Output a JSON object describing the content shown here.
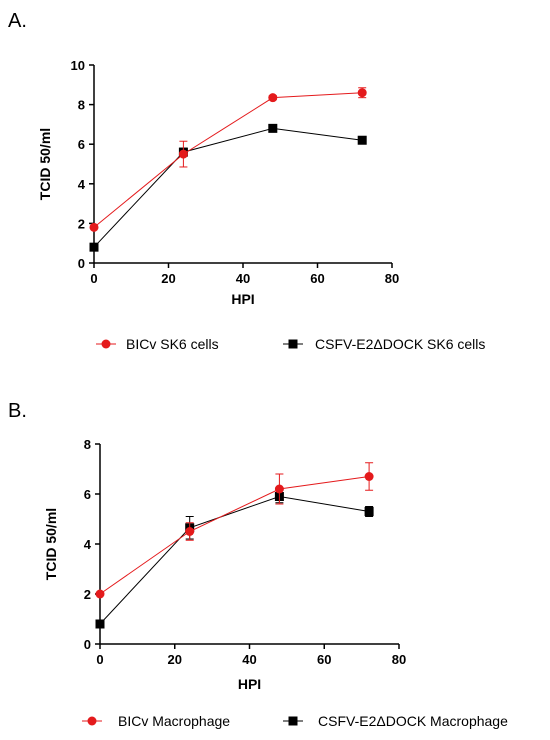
{
  "panels": [
    {
      "label": "A."
    },
    {
      "label": "B."
    }
  ],
  "chart_data": [
    {
      "type": "line",
      "xlabel": "HPI",
      "ylabel": "TCID 50/ml",
      "xlim": [
        0,
        80
      ],
      "ylim": [
        0,
        10
      ],
      "xticks": [
        "0",
        "20",
        "40",
        "60",
        "80"
      ],
      "yticks": [
        "0",
        "2",
        "4",
        "6",
        "8",
        "10"
      ],
      "grid": false,
      "legend": "bottom",
      "series": [
        {
          "name": "BICv SK6 cells",
          "color": "#e41a1c",
          "marker": "circle",
          "x": [
            0,
            24,
            48,
            72
          ],
          "y": [
            1.8,
            5.5,
            8.35,
            8.6
          ],
          "err": [
            0,
            0.65,
            0.1,
            0.25
          ]
        },
        {
          "name": "CSFV-E2ΔDOCK SK6 cells",
          "color": "#000000",
          "marker": "square",
          "x": [
            0,
            24,
            48,
            72
          ],
          "y": [
            0.8,
            5.6,
            6.8,
            6.2
          ],
          "err": [
            0,
            0.2,
            0.1,
            0.1
          ]
        }
      ]
    },
    {
      "type": "line",
      "xlabel": "HPI",
      "ylabel": "TCID 50/ml",
      "xlim": [
        0,
        80
      ],
      "ylim": [
        0,
        8
      ],
      "xticks": [
        "0",
        "20",
        "40",
        "60",
        "80"
      ],
      "yticks": [
        "0",
        "2",
        "4",
        "6",
        "8"
      ],
      "grid": false,
      "legend": "bottom",
      "series": [
        {
          "name": "BICv Macrophage",
          "color": "#e41a1c",
          "marker": "circle",
          "x": [
            0,
            24,
            48,
            72
          ],
          "y": [
            2.0,
            4.5,
            6.2,
            6.7
          ],
          "err": [
            0,
            0.35,
            0.6,
            0.55
          ]
        },
        {
          "name": "CSFV-E2ΔDOCK Macrophage",
          "color": "#000000",
          "marker": "square",
          "x": [
            0,
            24,
            48,
            72
          ],
          "y": [
            0.8,
            4.65,
            5.9,
            5.3
          ],
          "err": [
            0,
            0.45,
            0.25,
            0.2
          ]
        }
      ]
    }
  ]
}
